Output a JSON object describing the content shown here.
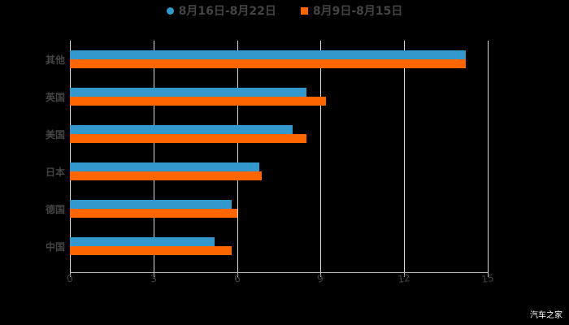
{
  "chart_data": {
    "type": "bar",
    "orientation": "horizontal",
    "title": "",
    "xlabel": "",
    "ylabel": "",
    "categories": [
      "其他",
      "英国",
      "美国",
      "日本",
      "德国",
      "中国"
    ],
    "series": [
      {
        "name": "8月16日-8月22日",
        "color": "#3399cc",
        "marker": "circle",
        "values": [
          14.2,
          8.5,
          8.0,
          6.8,
          5.8,
          5.2
        ]
      },
      {
        "name": "8月9日-8月15日",
        "color": "#ff6600",
        "marker": "square",
        "values": [
          14.2,
          9.2,
          8.5,
          6.9,
          6.0,
          5.8
        ]
      }
    ],
    "xlim": [
      0,
      15
    ],
    "xticks": [
      "0",
      "3",
      "6",
      "9",
      "12",
      "15"
    ],
    "grid": true,
    "legend_position": "top"
  },
  "legend": {
    "items": [
      {
        "label": "8月16日-8月22日",
        "color": "#3399cc"
      },
      {
        "label": "8月9日-8月15日",
        "color": "#ff6600"
      }
    ]
  },
  "watermark": "汽车之家"
}
